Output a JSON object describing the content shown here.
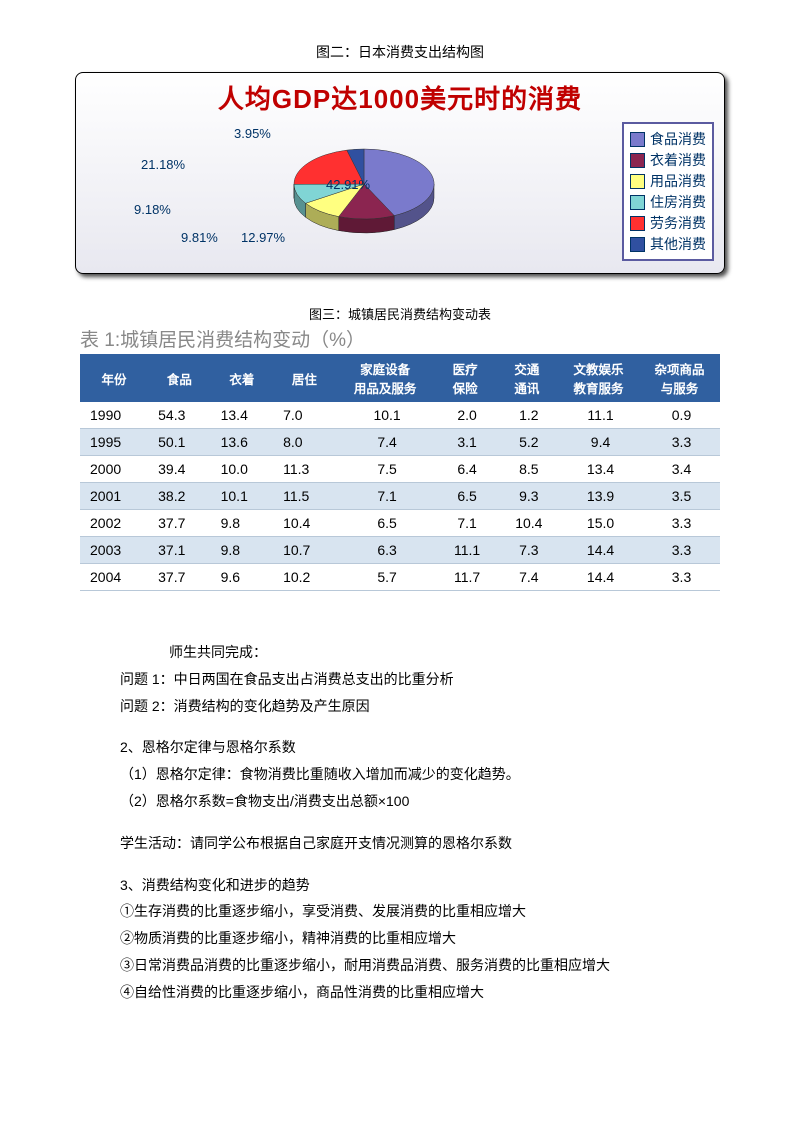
{
  "captions": {
    "fig2": "图二：日本消费支出结构图",
    "fig3": "图三：城镇居民消费结构变动表"
  },
  "chart": {
    "title": "人均GDP达1000美元时的消费",
    "type": "pie",
    "background_gradient": [
      "#ffffff",
      "#e8e8f0"
    ],
    "border_color": "#000000",
    "title_color": "#c00000",
    "title_fontsize": 26,
    "label_color": "#003366",
    "label_fontsize": 13,
    "legend_border": "#5b5ba0",
    "slices": [
      {
        "label": "食品消费",
        "value": 42.91,
        "color": "#7a7acc"
      },
      {
        "label": "衣着消费",
        "value": 12.97,
        "color": "#8b2550"
      },
      {
        "label": "用品消费",
        "value": 9.81,
        "color": "#ffff80"
      },
      {
        "label": "住房消费",
        "value": 9.18,
        "color": "#80d5d5"
      },
      {
        "label": "劳务消费",
        "value": 21.18,
        "color": "#ff3030"
      },
      {
        "label": "其他消费",
        "value": 3.95,
        "color": "#3050a0"
      }
    ]
  },
  "table": {
    "title": "表 1:城镇居民消费结构变动（%）",
    "title_color": "#888888",
    "title_fontsize": 19,
    "header_bg": "#3060a0",
    "header_fg": "#ffffff",
    "row_even_bg": "#d8e4f0",
    "row_odd_bg": "#ffffff",
    "border_color": "#b8c8d8",
    "columns": [
      "年份",
      "食品",
      "衣着",
      "居住",
      "家庭设备\n用品及服务",
      "医疗\n保险",
      "交通\n通讯",
      "文教娱乐\n教育服务",
      "杂项商品\n与服务"
    ],
    "rows": [
      [
        "1990",
        "54.3",
        "13.4",
        "7.0",
        "10.1",
        "2.0",
        "1.2",
        "11.1",
        "0.9"
      ],
      [
        "1995",
        "50.1",
        "13.6",
        "8.0",
        "7.4",
        "3.1",
        "5.2",
        "9.4",
        "3.3"
      ],
      [
        "2000",
        "39.4",
        "10.0",
        "11.3",
        "7.5",
        "6.4",
        "8.5",
        "13.4",
        "3.4"
      ],
      [
        "2001",
        "38.2",
        "10.1",
        "11.5",
        "7.1",
        "6.5",
        "9.3",
        "13.9",
        "3.5"
      ],
      [
        "2002",
        "37.7",
        "9.8",
        "10.4",
        "6.5",
        "7.1",
        "10.4",
        "15.0",
        "3.3"
      ],
      [
        "2003",
        "37.1",
        "9.8",
        "10.7",
        "6.3",
        "11.1",
        "7.3",
        "14.4",
        "3.3"
      ],
      [
        "2004",
        "37.7",
        "9.6",
        "10.2",
        "5.7",
        "11.7",
        "7.4",
        "14.4",
        "3.3"
      ]
    ]
  },
  "body": {
    "p1": "师生共同完成：",
    "p2": "问题 1：中日两国在食品支出占消费总支出的比重分析",
    "p3": "问题 2：消费结构的变化趋势及产生原因",
    "p4": "2、恩格尔定律与恩格尔系数",
    "p5": "（1）恩格尔定律：食物消费比重随收入增加而减少的变化趋势。",
    "p6": "（2）恩格尔系数=食物支出/消费支出总额×100",
    "p7": "学生活动：请同学公布根据自己家庭开支情况测算的恩格尔系数",
    "p8": "3、消费结构变化和进步的趋势",
    "p9": "①生存消费的比重逐步缩小，享受消费、发展消费的比重相应增大",
    "p10": "②物质消费的比重逐步缩小，精神消费的比重相应增大",
    "p11": "③日常消费品消费的比重逐步缩小，耐用消费品消费、服务消费的比重相应增大",
    "p12": "④自给性消费的比重逐步缩小，商品性消费的比重相应增大"
  }
}
